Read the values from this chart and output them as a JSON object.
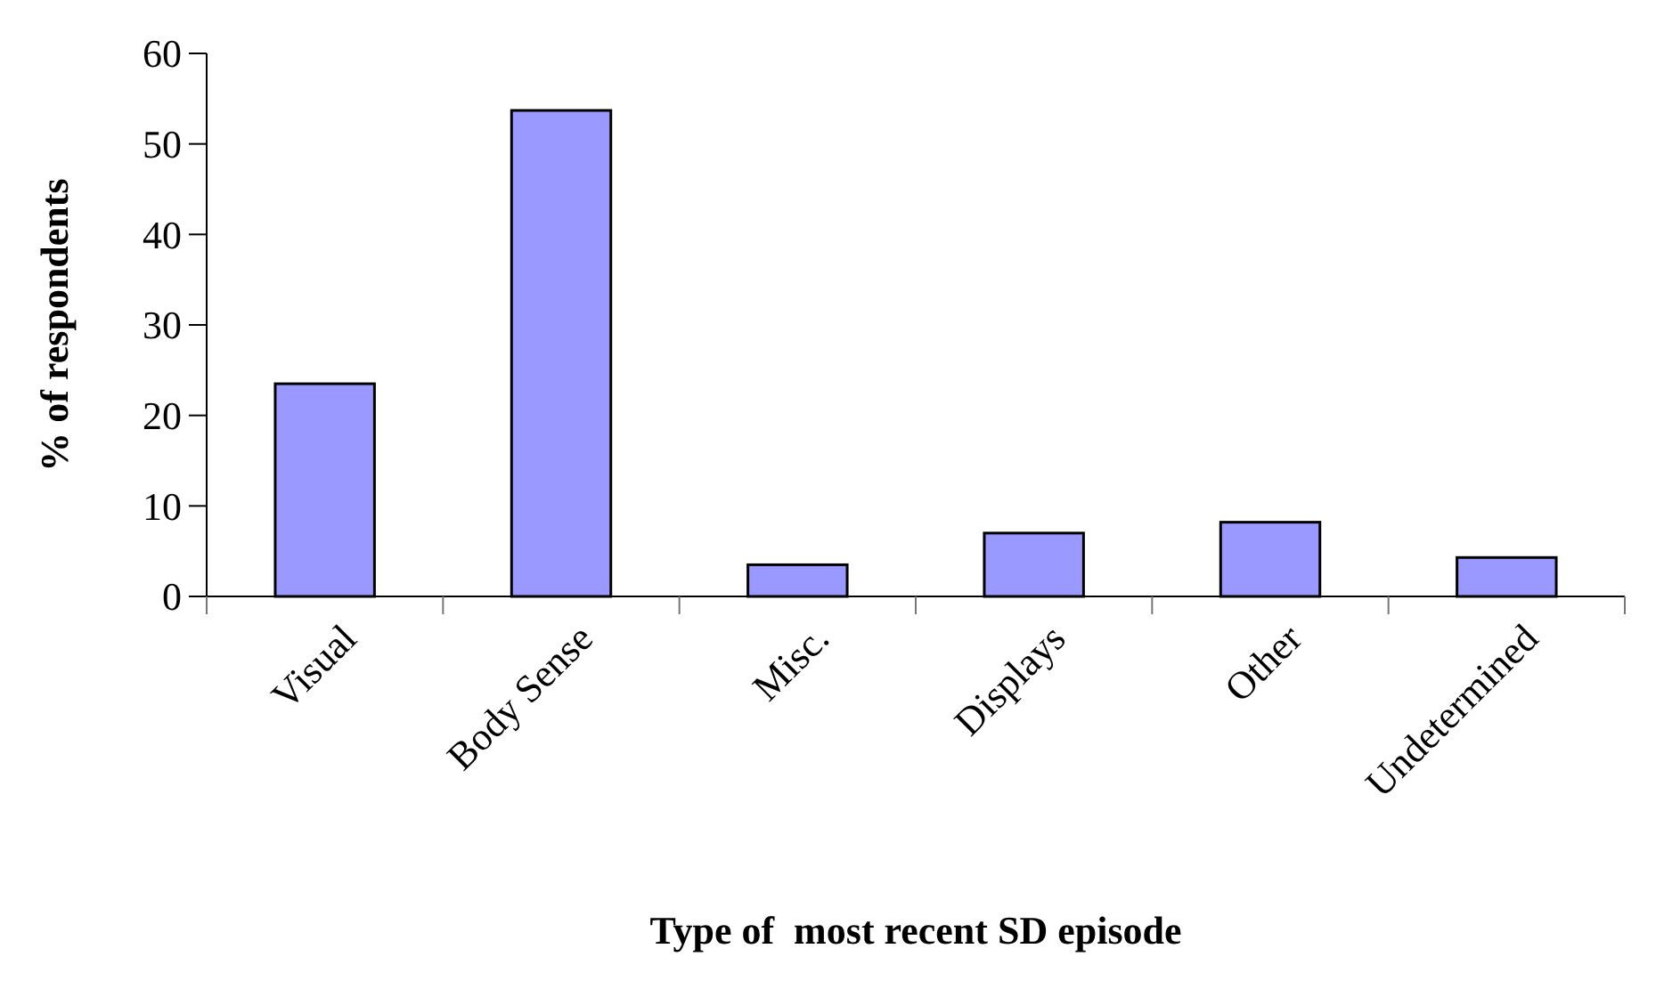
{
  "chart_data": {
    "type": "bar",
    "xlabel": "Type of  most recent SD episode",
    "ylabel": "% of respondents",
    "categories": [
      "Visual",
      "Body Sense",
      "Misc.",
      "Displays",
      "Other",
      "Undetermined"
    ],
    "values": [
      23.5,
      53.7,
      3.5,
      7.0,
      8.2,
      4.3
    ],
    "color": "#9999ff",
    "ylim": [
      0,
      60
    ],
    "yticks": [
      0,
      10,
      20,
      30,
      40,
      50,
      60
    ],
    "grid": false
  }
}
